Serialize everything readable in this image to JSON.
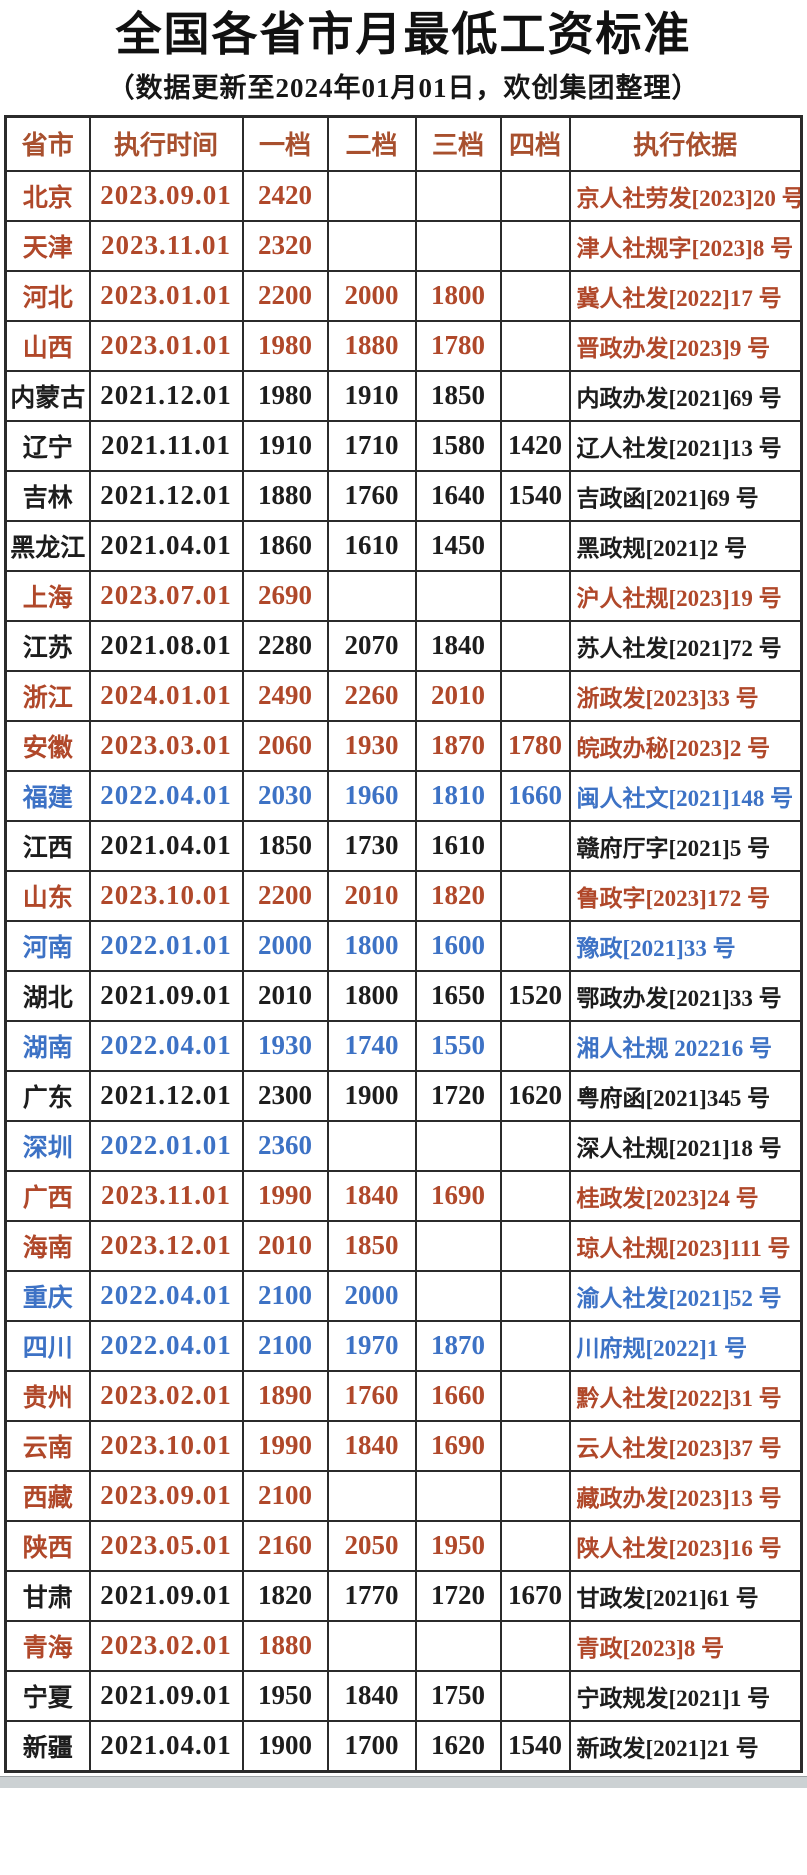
{
  "page": {
    "title": "全国各省市月最低工资标准",
    "subtitle": "（数据更新至2024年01月01日，欢创集团整理）"
  },
  "colors": {
    "red": "#b0482a",
    "blue": "#3d72c5",
    "black": "#1d1d1d",
    "header": "#a8502e",
    "border": "#2b2b2b"
  },
  "table": {
    "columns": [
      "省市",
      "执行时间",
      "一档",
      "二档",
      "三档",
      "四档",
      "执行依据"
    ],
    "rows": [
      {
        "province": "北京",
        "date": "2023.09.01",
        "tiers": [
          "2420",
          "",
          "",
          ""
        ],
        "basis": "京人社劳发[2023]20 号",
        "color": "red"
      },
      {
        "province": "天津",
        "date": "2023.11.01",
        "tiers": [
          "2320",
          "",
          "",
          ""
        ],
        "basis": "津人社规字[2023]8 号",
        "color": "red"
      },
      {
        "province": "河北",
        "date": "2023.01.01",
        "tiers": [
          "2200",
          "2000",
          "1800",
          ""
        ],
        "basis": "冀人社发[2022]17 号",
        "color": "red"
      },
      {
        "province": "山西",
        "date": "2023.01.01",
        "tiers": [
          "1980",
          "1880",
          "1780",
          ""
        ],
        "basis": "晋政办发[2023]9 号",
        "color": "red"
      },
      {
        "province": "内蒙古",
        "date": "2021.12.01",
        "tiers": [
          "1980",
          "1910",
          "1850",
          ""
        ],
        "basis": "内政办发[2021]69 号",
        "color": "black"
      },
      {
        "province": "辽宁",
        "date": "2021.11.01",
        "tiers": [
          "1910",
          "1710",
          "1580",
          "1420"
        ],
        "basis": "辽人社发[2021]13 号",
        "color": "black"
      },
      {
        "province": "吉林",
        "date": "2021.12.01",
        "tiers": [
          "1880",
          "1760",
          "1640",
          "1540"
        ],
        "basis": "吉政函[2021]69 号",
        "color": "black"
      },
      {
        "province": "黑龙江",
        "date": "2021.04.01",
        "tiers": [
          "1860",
          "1610",
          "1450",
          ""
        ],
        "basis": "黑政规[2021]2 号",
        "color": "black"
      },
      {
        "province": "上海",
        "date": "2023.07.01",
        "tiers": [
          "2690",
          "",
          "",
          ""
        ],
        "basis": "沪人社规[2023]19 号",
        "color": "red"
      },
      {
        "province": "江苏",
        "date": "2021.08.01",
        "tiers": [
          "2280",
          "2070",
          "1840",
          ""
        ],
        "basis": "苏人社发[2021]72 号",
        "color": "black"
      },
      {
        "province": "浙江",
        "date": "2024.01.01",
        "tiers": [
          "2490",
          "2260",
          "2010",
          ""
        ],
        "basis": "浙政发[2023]33 号",
        "color": "red"
      },
      {
        "province": "安徽",
        "date": "2023.03.01",
        "tiers": [
          "2060",
          "1930",
          "1870",
          "1780"
        ],
        "basis": "皖政办秘[2023]2 号",
        "color": "red"
      },
      {
        "province": "福建",
        "date": "2022.04.01",
        "tiers": [
          "2030",
          "1960",
          "1810",
          "1660"
        ],
        "basis": "闽人社文[2021]148 号",
        "color": "blue"
      },
      {
        "province": "江西",
        "date": "2021.04.01",
        "tiers": [
          "1850",
          "1730",
          "1610",
          ""
        ],
        "basis": "赣府厅字[2021]5 号",
        "color": "black"
      },
      {
        "province": "山东",
        "date": "2023.10.01",
        "tiers": [
          "2200",
          "2010",
          "1820",
          ""
        ],
        "basis": "鲁政字[2023]172 号",
        "color": "red"
      },
      {
        "province": "河南",
        "date": "2022.01.01",
        "tiers": [
          "2000",
          "1800",
          "1600",
          ""
        ],
        "basis": "豫政[2021]33 号",
        "color": "blue"
      },
      {
        "province": "湖北",
        "date": "2021.09.01",
        "tiers": [
          "2010",
          "1800",
          "1650",
          "1520"
        ],
        "basis": "鄂政办发[2021]33 号",
        "color": "black"
      },
      {
        "province": "湖南",
        "date": "2022.04.01",
        "tiers": [
          "1930",
          "1740",
          "1550",
          ""
        ],
        "basis": "湘人社规 202216 号",
        "color": "blue"
      },
      {
        "province": "广东",
        "date": "2021.12.01",
        "tiers": [
          "2300",
          "1900",
          "1720",
          "1620"
        ],
        "basis": "粤府函[2021]345 号",
        "color": "black"
      },
      {
        "province": "深圳",
        "date": "2022.01.01",
        "tiers": [
          "2360",
          "",
          "",
          ""
        ],
        "basis": "深人社规[2021]18 号",
        "color": "blue",
        "basis_color": "black"
      },
      {
        "province": "广西",
        "date": "2023.11.01",
        "tiers": [
          "1990",
          "1840",
          "1690",
          ""
        ],
        "basis": "桂政发[2023]24 号",
        "color": "red"
      },
      {
        "province": "海南",
        "date": "2023.12.01",
        "tiers": [
          "2010",
          "1850",
          "",
          ""
        ],
        "basis": "琼人社规[2023]111 号",
        "color": "red"
      },
      {
        "province": "重庆",
        "date": "2022.04.01",
        "tiers": [
          "2100",
          "2000",
          "",
          ""
        ],
        "basis": "渝人社发[2021]52 号",
        "color": "blue"
      },
      {
        "province": "四川",
        "date": "2022.04.01",
        "tiers": [
          "2100",
          "1970",
          "1870",
          ""
        ],
        "basis": "川府规[2022]1 号",
        "color": "blue"
      },
      {
        "province": "贵州",
        "date": "2023.02.01",
        "tiers": [
          "1890",
          "1760",
          "1660",
          ""
        ],
        "basis": "黔人社发[2022]31 号",
        "color": "red"
      },
      {
        "province": "云南",
        "date": "2023.10.01",
        "tiers": [
          "1990",
          "1840",
          "1690",
          ""
        ],
        "basis": "云人社发[2023]37 号",
        "color": "red"
      },
      {
        "province": "西藏",
        "date": "2023.09.01",
        "tiers": [
          "2100",
          "",
          "",
          ""
        ],
        "basis": "藏政办发[2023]13 号",
        "color": "red"
      },
      {
        "province": "陕西",
        "date": "2023.05.01",
        "tiers": [
          "2160",
          "2050",
          "1950",
          ""
        ],
        "basis": "陕人社发[2023]16 号",
        "color": "red"
      },
      {
        "province": "甘肃",
        "date": "2021.09.01",
        "tiers": [
          "1820",
          "1770",
          "1720",
          "1670"
        ],
        "basis": "甘政发[2021]61 号",
        "color": "black"
      },
      {
        "province": "青海",
        "date": "2023.02.01",
        "tiers": [
          "1880",
          "",
          "",
          ""
        ],
        "basis": "青政[2023]8 号",
        "color": "red"
      },
      {
        "province": "宁夏",
        "date": "2021.09.01",
        "tiers": [
          "1950",
          "1840",
          "1750",
          ""
        ],
        "basis": "宁政规发[2021]1 号",
        "color": "black"
      },
      {
        "province": "新疆",
        "date": "2021.04.01",
        "tiers": [
          "1900",
          "1700",
          "1620",
          "1540"
        ],
        "basis": "新政发[2021]21 号",
        "color": "black"
      }
    ]
  }
}
